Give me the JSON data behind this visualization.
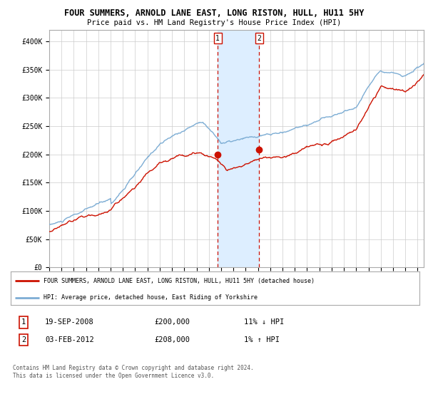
{
  "title": "FOUR SUMMERS, ARNOLD LANE EAST, LONG RISTON, HULL, HU11 5HY",
  "subtitle": "Price paid vs. HM Land Registry's House Price Index (HPI)",
  "ylim": [
    0,
    420000
  ],
  "yticks": [
    0,
    50000,
    100000,
    150000,
    200000,
    250000,
    300000,
    350000,
    400000
  ],
  "ytick_labels": [
    "£0",
    "£50K",
    "£100K",
    "£150K",
    "£200K",
    "£250K",
    "£300K",
    "£350K",
    "£400K"
  ],
  "xlim_start": 1995,
  "xlim_end": 2025.5,
  "hpi_color": "#7dadd4",
  "price_color": "#cc1100",
  "sale1_x": 2008.72,
  "sale1_y": 200000,
  "sale2_x": 2012.09,
  "sale2_y": 208000,
  "shade_color": "#ddeeff",
  "vline_color": "#cc1100",
  "legend_line1": "FOUR SUMMERS, ARNOLD LANE EAST, LONG RISTON, HULL, HU11 5HY (detached house)",
  "legend_line2": "HPI: Average price, detached house, East Riding of Yorkshire",
  "table_row1": [
    "1",
    "19-SEP-2008",
    "£200,000",
    "11% ↓ HPI"
  ],
  "table_row2": [
    "2",
    "03-FEB-2012",
    "£208,000",
    "1% ↑ HPI"
  ],
  "footer": "Contains HM Land Registry data © Crown copyright and database right 2024.\nThis data is licensed under the Open Government Licence v3.0.",
  "background_color": "#ffffff",
  "grid_color": "#cccccc"
}
